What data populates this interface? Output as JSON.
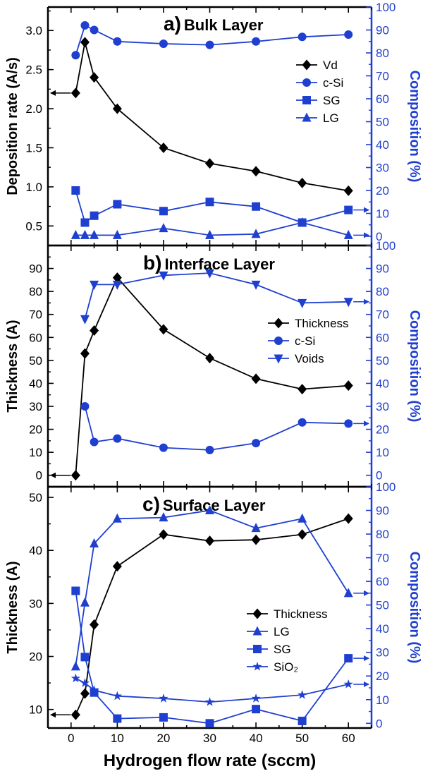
{
  "colors": {
    "black_series": "#000000",
    "blue_series": "#1f3fd0",
    "background": "#ffffff"
  },
  "chart_data": [
    {
      "type": "line",
      "panel_letter": "a)",
      "title": "Bulk Layer",
      "xlabel": "",
      "ylabel": "Deposition rate (A/s)",
      "y2label": "Composition (%)",
      "xlim": [
        -5,
        65
      ],
      "ylim": [
        0.25,
        3.3
      ],
      "y2lim": [
        -4,
        100
      ],
      "xticks": [
        0,
        10,
        20,
        30,
        40,
        50,
        60
      ],
      "yticks": [
        0.5,
        1.0,
        1.5,
        2.0,
        2.5,
        3.0
      ],
      "ytick_labels": [
        "0.5",
        "1.0",
        "1.5",
        "2.0",
        "2.5",
        "3.0"
      ],
      "y2ticks": [
        0,
        10,
        20,
        30,
        40,
        50,
        60,
        70,
        80,
        90,
        100
      ],
      "legend_position": "right",
      "series": [
        {
          "name": "Vd",
          "axis": "left",
          "marker": "diamond",
          "color": "#000000",
          "x": [
            1,
            3,
            5,
            10,
            20,
            30,
            40,
            50,
            60
          ],
          "y": [
            2.2,
            2.85,
            2.4,
            2.0,
            1.5,
            1.3,
            1.2,
            1.05,
            0.95
          ]
        },
        {
          "name": "c-Si",
          "axis": "right",
          "marker": "circle",
          "color": "#1f3fd0",
          "x": [
            1,
            3,
            5,
            10,
            20,
            30,
            40,
            50,
            60
          ],
          "y": [
            79,
            92,
            90,
            85,
            84,
            83.5,
            85,
            87,
            88
          ]
        },
        {
          "name": "SG",
          "axis": "right",
          "marker": "square",
          "color": "#1f3fd0",
          "x": [
            1,
            3,
            5,
            10,
            20,
            30,
            40,
            50,
            60
          ],
          "y": [
            20,
            6,
            9,
            14,
            11,
            15,
            13,
            6,
            11.5
          ]
        },
        {
          "name": "LG",
          "axis": "right",
          "marker": "triangle",
          "color": "#1f3fd0",
          "x": [
            1,
            3,
            5,
            10,
            20,
            30,
            40,
            50,
            60
          ],
          "y": [
            0.5,
            0.5,
            0.5,
            0.5,
            3.5,
            0.5,
            1,
            6,
            0.5
          ]
        }
      ]
    },
    {
      "type": "line",
      "panel_letter": "b)",
      "title": "Interface Layer",
      "xlabel": "",
      "ylabel": "Thickness (A)",
      "y2label": "Composition (%)",
      "xlim": [
        -5,
        65
      ],
      "ylim": [
        -5,
        100
      ],
      "y2lim": [
        -5,
        100
      ],
      "xticks": [
        0,
        10,
        20,
        30,
        40,
        50,
        60
      ],
      "yticks": [
        0,
        10,
        20,
        30,
        40,
        50,
        60,
        70,
        80,
        90
      ],
      "ytick_labels": [
        "0",
        "10",
        "20",
        "30",
        "40",
        "50",
        "60",
        "70",
        "80",
        "90"
      ],
      "y2ticks": [
        0,
        10,
        20,
        30,
        40,
        50,
        60,
        70,
        80,
        90,
        100
      ],
      "legend_position": "right",
      "series": [
        {
          "name": "Thickness",
          "axis": "left",
          "marker": "diamond",
          "color": "#000000",
          "x": [
            1,
            3,
            5,
            10,
            20,
            30,
            40,
            50,
            60
          ],
          "y": [
            0,
            53,
            63,
            86,
            63.5,
            51,
            42,
            37.5,
            39
          ]
        },
        {
          "name": "c-Si",
          "axis": "right",
          "marker": "circle",
          "color": "#1f3fd0",
          "x": [
            3,
            5,
            10,
            20,
            30,
            40,
            50,
            60
          ],
          "y": [
            30,
            14.5,
            16,
            12,
            11,
            14,
            23,
            22.5
          ]
        },
        {
          "name": "Voids",
          "axis": "right",
          "marker": "triangle-down",
          "color": "#1f3fd0",
          "x": [
            3,
            5,
            10,
            20,
            30,
            40,
            50,
            60
          ],
          "y": [
            68,
            83,
            83,
            87,
            88,
            83,
            75,
            75.5
          ]
        }
      ]
    },
    {
      "type": "line",
      "panel_letter": "c)",
      "title": "Surface Layer",
      "xlabel": "Hydrogen flow rate (sccm)",
      "ylabel": "Thickness (A)",
      "y2label": "Composition (%)",
      "xlim": [
        -5,
        65
      ],
      "ylim": [
        6.5,
        52
      ],
      "y2lim": [
        -2,
        100
      ],
      "xticks": [
        0,
        10,
        20,
        30,
        40,
        50,
        60
      ],
      "xtick_labels": [
        "0",
        "10",
        "20",
        "30",
        "40",
        "50",
        "60"
      ],
      "yticks": [
        10,
        20,
        30,
        40,
        50
      ],
      "ytick_labels": [
        "10",
        "20",
        "30",
        "40",
        "50"
      ],
      "y2ticks": [
        0,
        10,
        20,
        30,
        40,
        50,
        60,
        70,
        80,
        90,
        100
      ],
      "legend_position": "bottom-right",
      "series": [
        {
          "name": "Thickness",
          "axis": "left",
          "marker": "diamond",
          "color": "#000000",
          "x": [
            1,
            3,
            5,
            10,
            20,
            30,
            40,
            50,
            60
          ],
          "y": [
            9,
            13,
            26,
            37,
            43,
            41.8,
            42,
            43,
            46
          ]
        },
        {
          "name": "LG",
          "axis": "right",
          "marker": "triangle",
          "color": "#1f3fd0",
          "x": [
            1,
            3,
            5,
            10,
            20,
            30,
            40,
            50,
            60
          ],
          "y": [
            24,
            51,
            76,
            86.5,
            87,
            90,
            82.5,
            86.5,
            55
          ]
        },
        {
          "name": "SG",
          "axis": "right",
          "marker": "square",
          "color": "#1f3fd0",
          "x": [
            1,
            3,
            5,
            10,
            20,
            30,
            40,
            50,
            60
          ],
          "y": [
            56,
            28,
            13,
            2,
            2.5,
            0,
            6,
            1,
            27.5
          ]
        },
        {
          "name": "SiO₂",
          "axis": "right",
          "marker": "star",
          "color": "#1f3fd0",
          "x": [
            1,
            3,
            5,
            10,
            20,
            30,
            40,
            50,
            60
          ],
          "y": [
            19,
            17,
            14,
            11.5,
            10.5,
            9,
            10.5,
            12,
            16.5
          ]
        }
      ]
    }
  ]
}
